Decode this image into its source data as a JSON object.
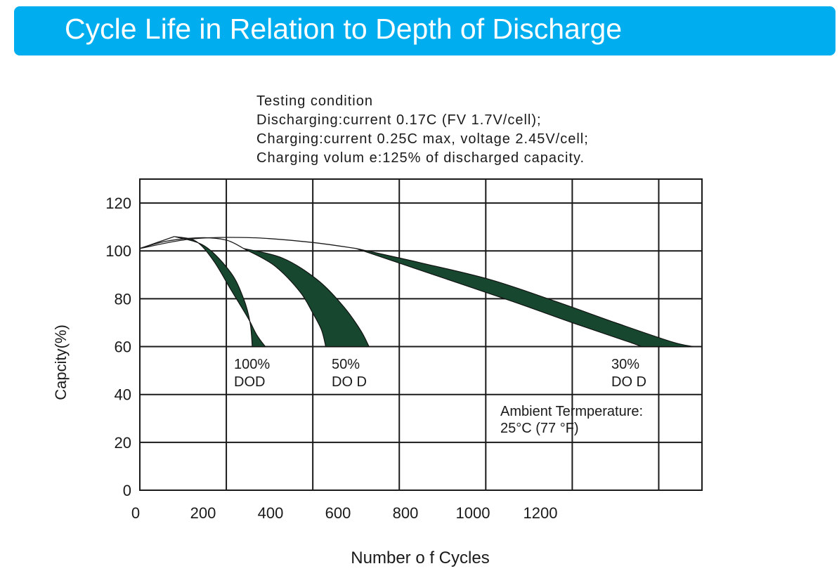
{
  "header": {
    "title": "Cycle Life in Relation to Depth of Discharge",
    "bg_color": "#00AEEF"
  },
  "testing_conditions": [
    "Testing condition",
    "Discharging:current 0.17C (FV 1.7V/cell);",
    "Charging:current 0.25C max, voltage 2.45V/cell;",
    "Charging volum e:125% of discharged capacity."
  ],
  "chart_data": {
    "type": "area",
    "title": "",
    "xlabel": "Number o f Cycles",
    "ylabel": "Capcity(%)",
    "xlim": [
      0,
      1300
    ],
    "ylim": [
      0,
      130
    ],
    "x_ticks": [
      0,
      200,
      400,
      600,
      800,
      1000,
      1200
    ],
    "y_ticks": [
      0,
      20,
      40,
      60,
      80,
      100,
      120
    ],
    "grid": true,
    "band_color": "#17472F",
    "series": [
      {
        "label_lines": [
          "100%",
          "DOD"
        ],
        "shared_start": [
          [
            0,
            101
          ],
          [
            40,
            103.5
          ],
          [
            80,
            106
          ]
        ],
        "upper": [
          [
            80,
            106
          ],
          [
            130,
            104
          ],
          [
            170,
            96
          ],
          [
            210,
            84
          ],
          [
            250,
            72
          ],
          [
            270,
            65
          ],
          [
            290,
            60
          ]
        ],
        "lower": [
          [
            80,
            106
          ],
          [
            150,
            102
          ],
          [
            210,
            91
          ],
          [
            240,
            80
          ],
          [
            255,
            70
          ],
          [
            260,
            60
          ]
        ]
      },
      {
        "label_lines": [
          "50%",
          "DO D"
        ],
        "shared_start": [
          [
            0,
            101
          ],
          [
            60,
            104
          ],
          [
            140,
            105.5
          ],
          [
            200,
            104.5
          ],
          [
            240,
            101
          ]
        ],
        "upper": [
          [
            240,
            101
          ],
          [
            330,
            97
          ],
          [
            410,
            88
          ],
          [
            470,
            77
          ],
          [
            510,
            67
          ],
          [
            530,
            60
          ]
        ],
        "lower": [
          [
            240,
            101
          ],
          [
            310,
            94
          ],
          [
            370,
            83
          ],
          [
            400,
            74
          ],
          [
            420,
            67
          ],
          [
            430,
            60
          ]
        ]
      },
      {
        "label_lines": [
          "30%",
          "DO D"
        ],
        "shared_start": [
          [
            0,
            101
          ],
          [
            120,
            105
          ],
          [
            260,
            105.5
          ],
          [
            400,
            103.5
          ],
          [
            500,
            101
          ]
        ],
        "upper": [
          [
            500,
            101
          ],
          [
            650,
            95
          ],
          [
            810,
            88
          ],
          [
            960,
            79
          ],
          [
            1100,
            70
          ],
          [
            1230,
            62
          ],
          [
            1280,
            60
          ]
        ],
        "lower": [
          [
            500,
            101
          ],
          [
            680,
            90
          ],
          [
            860,
            79
          ],
          [
            1000,
            70
          ],
          [
            1130,
            62
          ],
          [
            1160,
            60
          ]
        ]
      }
    ],
    "annotation_lines": [
      "Ambient Termperature:",
      "25°C (77 °F)"
    ]
  }
}
